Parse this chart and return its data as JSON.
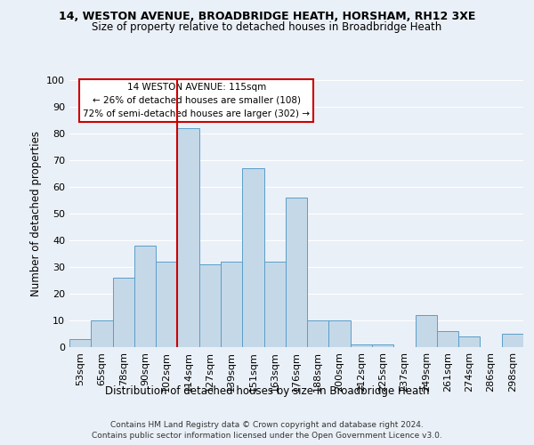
{
  "title1": "14, WESTON AVENUE, BROADBRIDGE HEATH, HORSHAM, RH12 3XE",
  "title2": "Size of property relative to detached houses in Broadbridge Heath",
  "xlabel": "Distribution of detached houses by size in Broadbridge Heath",
  "ylabel": "Number of detached properties",
  "footnote1": "Contains HM Land Registry data © Crown copyright and database right 2024.",
  "footnote2": "Contains public sector information licensed under the Open Government Licence v3.0.",
  "annotation_line1": "14 WESTON AVENUE: 115sqm",
  "annotation_line2": "← 26% of detached houses are smaller (108)",
  "annotation_line3": "72% of semi-detached houses are larger (302) →",
  "bar_color": "#c5d8e8",
  "bar_edge_color": "#5a9ec9",
  "categories": [
    "53sqm",
    "65sqm",
    "78sqm",
    "90sqm",
    "102sqm",
    "114sqm",
    "127sqm",
    "139sqm",
    "151sqm",
    "163sqm",
    "176sqm",
    "188sqm",
    "200sqm",
    "212sqm",
    "225sqm",
    "237sqm",
    "249sqm",
    "261sqm",
    "274sqm",
    "286sqm",
    "298sqm"
  ],
  "values": [
    3,
    10,
    26,
    38,
    32,
    82,
    31,
    32,
    67,
    32,
    56,
    10,
    10,
    1,
    1,
    0,
    12,
    6,
    4,
    0,
    5
  ],
  "ylim": [
    0,
    100
  ],
  "yticks": [
    0,
    10,
    20,
    30,
    40,
    50,
    60,
    70,
    80,
    90,
    100
  ],
  "marker_color": "#cc0000",
  "bg_color": "#eaf0f7",
  "grid_color": "#ffffff",
  "annotation_box_color": "#ffffff",
  "annotation_box_edge": "#cc0000"
}
